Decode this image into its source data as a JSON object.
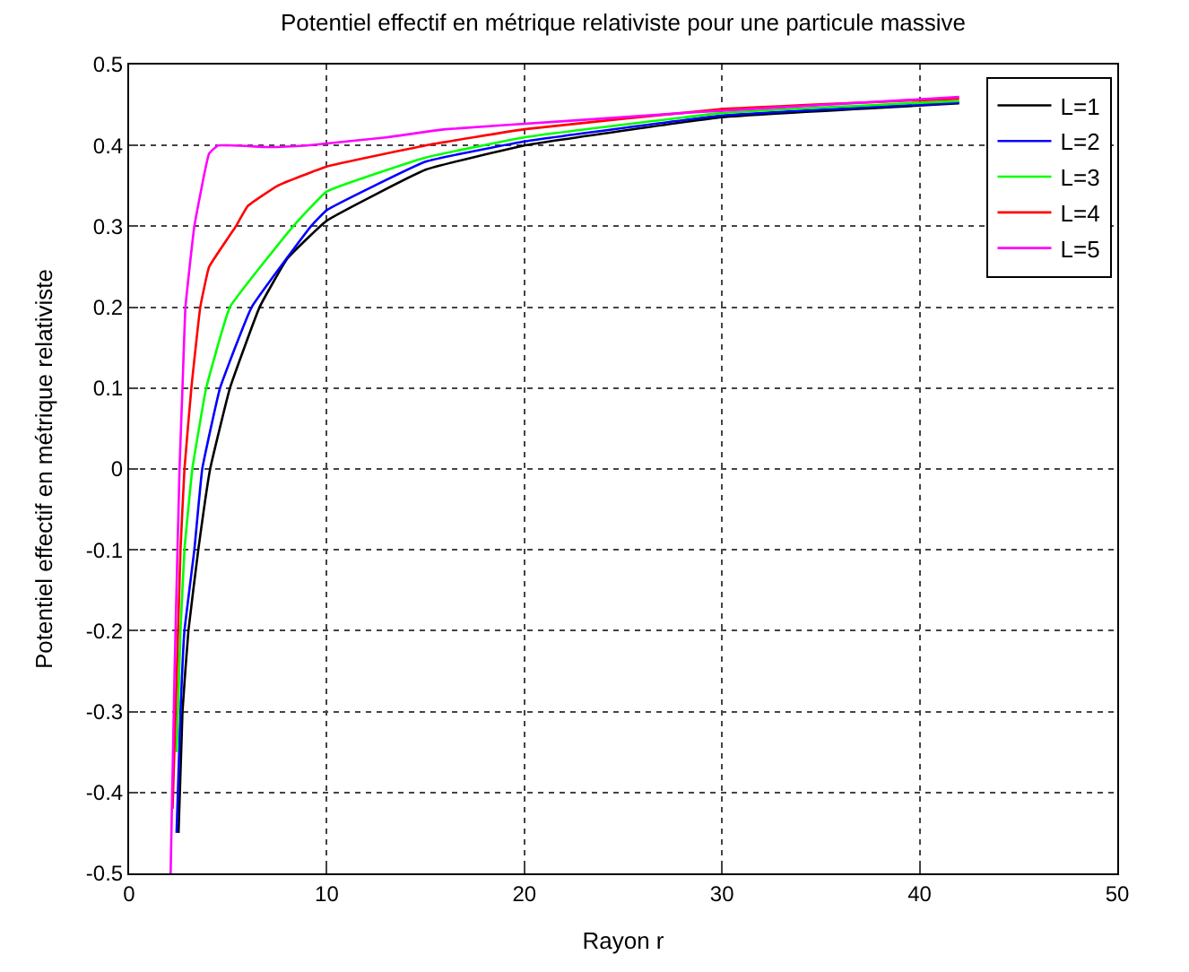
{
  "chart_data": {
    "type": "line",
    "title": "Potentiel effectif en métrique relativiste pour une particule massive",
    "xlabel": "Rayon r",
    "ylabel": "Potentiel effectif en métrique relativiste",
    "xlim": [
      0,
      50
    ],
    "ylim": [
      -0.5,
      0.5
    ],
    "xticks": [
      0,
      10,
      20,
      30,
      40,
      50
    ],
    "yticks": [
      -0.5,
      -0.4,
      -0.3,
      -0.2,
      -0.1,
      0,
      0.1,
      0.2,
      0.3,
      0.4,
      0.5
    ],
    "grid": true,
    "legend": "top right",
    "marker": "none",
    "line_style": "solid",
    "series": [
      {
        "name": "L=1",
        "color": "#000000",
        "x": [
          2.5,
          2.7,
          3.0,
          3.5,
          4.1,
          5.1,
          6.6,
          8,
          10,
          15,
          20,
          30,
          42
        ],
        "values": [
          -0.45,
          -0.3,
          -0.2,
          -0.1,
          0,
          0.1,
          0.2,
          0.26,
          0.307,
          0.37,
          0.4,
          0.435,
          0.452
        ]
      },
      {
        "name": "L=2",
        "color": "#0000ff",
        "x": [
          2.4,
          2.6,
          2.8,
          3.3,
          3.7,
          4.6,
          6.2,
          9.2,
          10,
          15,
          20,
          30,
          42
        ],
        "values": [
          -0.45,
          -0.3,
          -0.2,
          -0.1,
          0,
          0.1,
          0.2,
          0.3,
          0.32,
          0.38,
          0.405,
          0.437,
          0.453
        ]
      },
      {
        "name": "L=3",
        "color": "#00ff00",
        "x": [
          2.4,
          2.6,
          2.8,
          3.2,
          3.9,
          5.1,
          8.3,
          10,
          15,
          20,
          30,
          42
        ],
        "values": [
          -0.35,
          -0.2,
          -0.1,
          0,
          0.1,
          0.2,
          0.3,
          0.343,
          0.385,
          0.41,
          0.44,
          0.455
        ]
      },
      {
        "name": "L=4",
        "color": "#ff0000",
        "x": [
          2.2,
          2.6,
          2.8,
          3.15,
          3.6,
          4.05,
          5.4,
          6,
          7.5,
          10,
          15,
          20,
          30,
          42
        ],
        "values": [
          -0.42,
          -0.1,
          0,
          0.1,
          0.2,
          0.25,
          0.3,
          0.325,
          0.35,
          0.374,
          0.4,
          0.42,
          0.445,
          0.458
        ]
      },
      {
        "name": "L=5",
        "color": "#ff00ff",
        "x": [
          2.1,
          2.3,
          2.55,
          2.7,
          2.85,
          3.3,
          4.05,
          4.5,
          7,
          9,
          13,
          16,
          22,
          28,
          35,
          42
        ],
        "values": [
          -0.5,
          -0.25,
          0,
          0.1,
          0.2,
          0.3,
          0.39,
          0.4,
          0.398,
          0.4,
          0.41,
          0.42,
          0.43,
          0.44,
          0.45,
          0.46
        ]
      }
    ]
  }
}
